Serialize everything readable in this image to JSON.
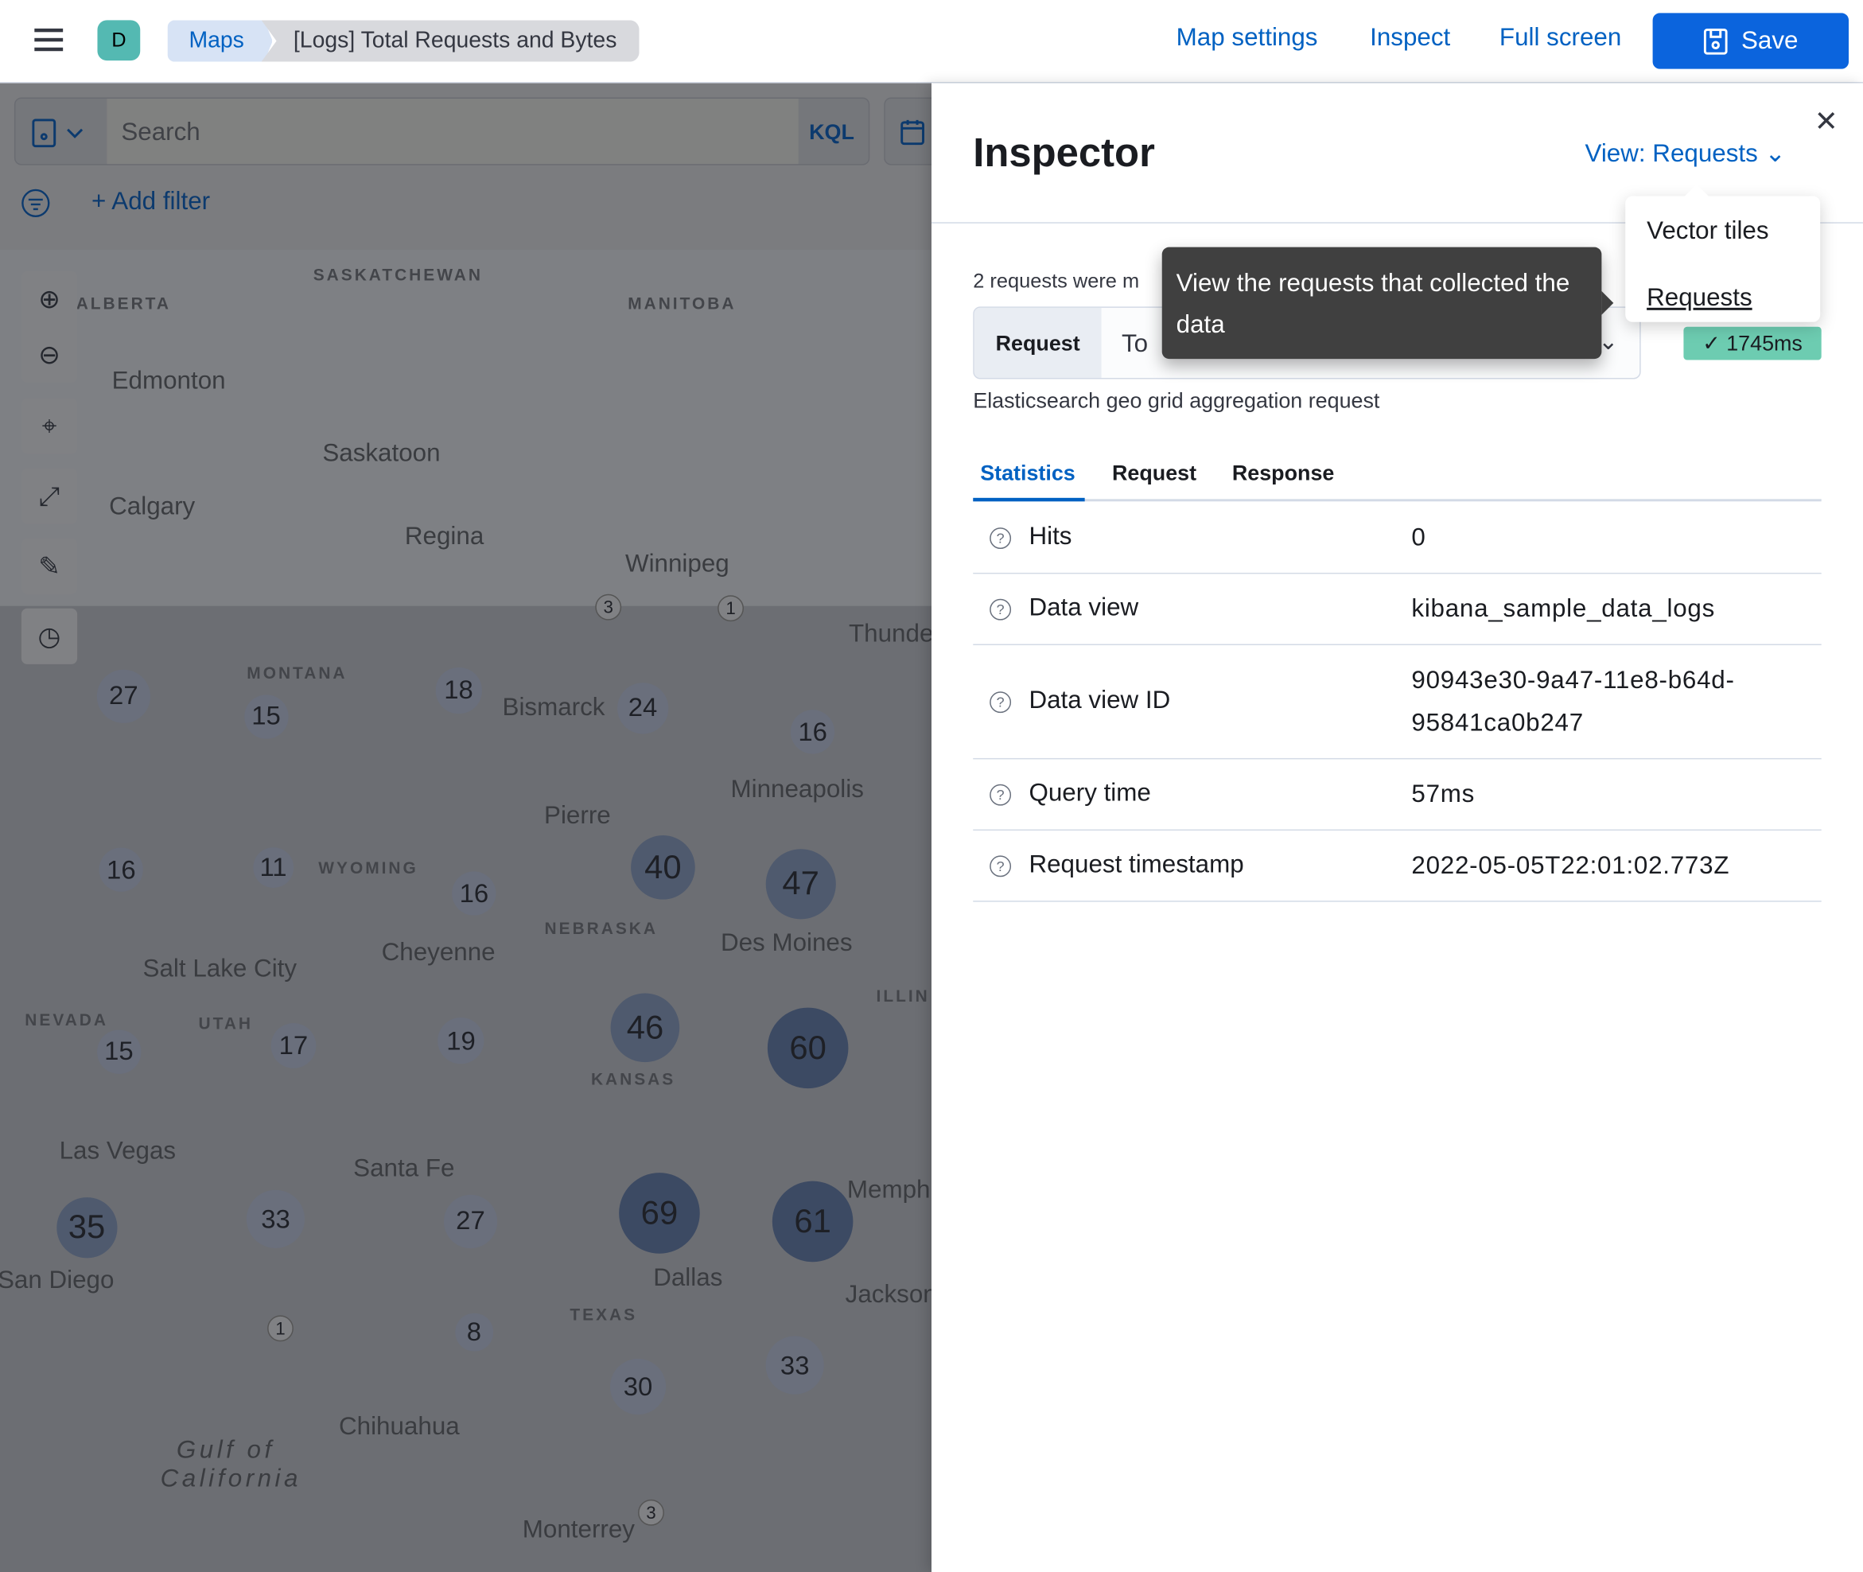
{
  "header": {
    "avatar": "D",
    "breadcrumbs": [
      "Maps",
      "[Logs] Total Requests and Bytes"
    ],
    "links": [
      "Map settings",
      "Inspect",
      "Full screen"
    ],
    "save": "Save",
    "accent": "#0b64dd"
  },
  "query": {
    "placeholder": "Search",
    "language": "KQL",
    "add_filter": "+ Add filter"
  },
  "map": {
    "controls": [
      "zoom-in-icon",
      "zoom-out-icon",
      "set-view-icon",
      "fit-bounds-icon",
      "tools-icon",
      "timeslider-icon"
    ],
    "labels": [
      "ALBERTA",
      "SASKATCHEWAN",
      "MANITOBA",
      "Edmonton",
      "Saskatoon",
      "Calgary",
      "Regina",
      "Winnipeg",
      "Thunde",
      "MONTANA",
      "Bismarck",
      "Minneapolis",
      "Pierre",
      "WYOMING",
      "NEBRASKA",
      "Des Moines",
      "Cheyenne",
      "Salt Lake City",
      "NEVADA",
      "UTAH",
      "KANSAS",
      "ILLIN",
      "Las Vegas",
      "Santa Fe",
      "Memph",
      "San Diego",
      "Dallas",
      "Jackson",
      "TEXAS",
      "Chihuahua",
      "Gulf of California",
      "Monterrey"
    ],
    "clusters": [
      3,
      1,
      27,
      15,
      18,
      24,
      16,
      16,
      11,
      16,
      40,
      47,
      46,
      60,
      15,
      17,
      19,
      35,
      33,
      27,
      69,
      61,
      1,
      8,
      30,
      33,
      3
    ]
  },
  "inspector": {
    "title": "Inspector",
    "view": "View: Requests",
    "requests_text": "2 requests were m",
    "request_label": "Request",
    "request_value": "To",
    "duration": "✓ 1745ms",
    "description": "Elasticsearch geo grid aggregation request",
    "tabs": [
      "Statistics",
      "Request",
      "Response"
    ],
    "stats": [
      {
        "label": "Hits",
        "value": "0"
      },
      {
        "label": "Data view",
        "value": "kibana_sample_data_logs"
      },
      {
        "label": "Data view ID",
        "value": "90943e30-9a47-11e8-b64d-95841ca0b247"
      },
      {
        "label": "Query time",
        "value": "57ms"
      },
      {
        "label": "Request timestamp",
        "value": "2022-05-05T22:01:02.773Z"
      }
    ],
    "tooltip": "View the requests that collected the data",
    "view_options": [
      "Vector tiles",
      "Requests"
    ]
  }
}
